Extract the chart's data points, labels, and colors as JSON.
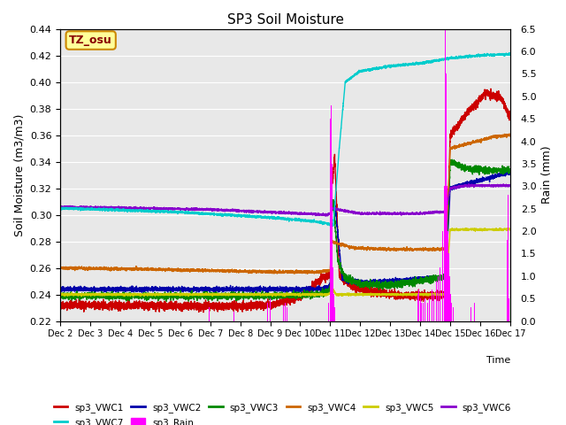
{
  "title": "SP3 Soil Moisture",
  "ylabel_left": "Soil Moisture (m3/m3)",
  "ylabel_right": "Rain (mm)",
  "xlabel": "Time",
  "xlim_days": [
    0,
    15
  ],
  "ylim_left": [
    0.22,
    0.44
  ],
  "ylim_right": [
    0.0,
    6.5
  ],
  "xtick_labels": [
    "Dec 2",
    "Dec 3",
    "Dec 4",
    "Dec 5",
    "Dec 6",
    "Dec 7",
    "Dec 8",
    "Dec 9",
    "Dec 9",
    "Dec 10",
    "Dec 11",
    "Dec 12",
    "Dec 13",
    "Dec 14",
    "Dec 15",
    "Dec 16",
    "Dec 17"
  ],
  "yticks_left": [
    0.22,
    0.24,
    0.26,
    0.28,
    0.3,
    0.32,
    0.34,
    0.36,
    0.38,
    0.4,
    0.42,
    0.44
  ],
  "yticks_right": [
    0.0,
    0.5,
    1.0,
    1.5,
    2.0,
    2.5,
    3.0,
    3.5,
    4.0,
    4.5,
    5.0,
    5.5,
    6.0,
    6.5
  ],
  "colors": {
    "VWC1": "#cc0000",
    "VWC2": "#0000aa",
    "VWC3": "#008800",
    "VWC4": "#cc6600",
    "VWC5": "#cccc00",
    "VWC6": "#8800cc",
    "VWC7": "#00cccc",
    "Rain": "#ff00ff"
  },
  "annotation_text": "TZ_osu",
  "annotation_color": "#880000",
  "annotation_bg": "#ffff99",
  "background_color": "#e8e8e8",
  "grid_color": "#ffffff"
}
